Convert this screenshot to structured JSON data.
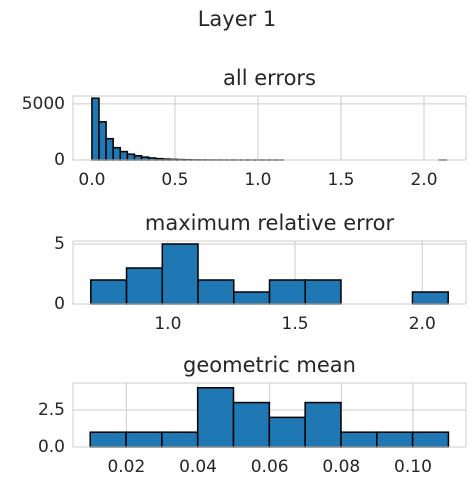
{
  "title": "Layer 1",
  "chart_data": [
    {
      "type": "histogram",
      "title": "all errors",
      "color": "#1f77b4",
      "edgecolor": "#000000",
      "grid": true,
      "bins": [
        0,
        0.0427,
        0.0854,
        0.1281,
        0.1708,
        0.2135,
        0.2562,
        0.2989,
        0.3416,
        0.3843,
        0.427,
        0.4697,
        0.5124,
        0.5551,
        0.5978,
        0.6405,
        0.6832,
        0.7259,
        0.7686,
        0.8113,
        0.854,
        0.8967,
        0.9394,
        0.9821,
        1.0248,
        1.0675,
        1.1102,
        1.1529,
        1.1956,
        1.2383,
        1.281,
        1.3237,
        1.3664,
        1.4091,
        1.4518,
        1.4945,
        1.5372,
        1.5799,
        1.6226,
        1.6653,
        1.708,
        1.7507,
        1.7934,
        1.8361,
        1.8788,
        1.9215,
        1.9642,
        2.0069,
        2.0496,
        2.0923,
        2.135
      ],
      "values": [
        5500,
        3400,
        1900,
        1100,
        750,
        520,
        380,
        260,
        180,
        120,
        80,
        55,
        35,
        25,
        15,
        10,
        7,
        5,
        4,
        3,
        2,
        2,
        1,
        1,
        1,
        1,
        1,
        0,
        0,
        0,
        0,
        0,
        0,
        0,
        0,
        0,
        0,
        0,
        0,
        0,
        0,
        0,
        0,
        0,
        0,
        0,
        0,
        0,
        0,
        1
      ],
      "xlim": [
        -0.114,
        2.253
      ],
      "ylim": [
        0,
        5700
      ],
      "xticks": [
        {
          "value": 0,
          "label": "0.0"
        },
        0.5,
        {
          "value": 1,
          "label": "1.0"
        },
        1.5,
        {
          "value": 2,
          "label": "2.0"
        }
      ],
      "yticks": [
        0,
        5000
      ]
    },
    {
      "type": "histogram",
      "title": "maximum relative error",
      "color": "#1f77b4",
      "edgecolor": "#000000",
      "grid": true,
      "bins": [
        0.697,
        0.8375,
        0.978,
        1.1185,
        1.259,
        1.3995,
        1.54,
        1.6805,
        1.821,
        1.9615,
        2.102
      ],
      "values": [
        2,
        3,
        5,
        2,
        1,
        2,
        2,
        0,
        0,
        1
      ],
      "xlim": [
        0.627,
        2.172
      ],
      "ylim": [
        0,
        5.25
      ],
      "xticks": [
        {
          "value": 1,
          "label": "1.0"
        },
        1.5,
        {
          "value": 2,
          "label": "2.0"
        }
      ],
      "yticks": [
        0,
        5
      ]
    },
    {
      "type": "histogram",
      "title": "geometric mean",
      "color": "#1f77b4",
      "edgecolor": "#000000",
      "grid": true,
      "bins": [
        0.0099,
        0.0199,
        0.0299,
        0.0399,
        0.0499,
        0.0599,
        0.0699,
        0.0799,
        0.0899,
        0.0999,
        0.1099
      ],
      "values": [
        1,
        1,
        1,
        4,
        3,
        2,
        3,
        1,
        1,
        1
      ],
      "xlim": [
        0.0051,
        0.1148
      ],
      "ylim": [
        0,
        4.32
      ],
      "xticks": [
        0.02,
        0.04,
        0.06,
        0.08,
        {
          "value": 0.1,
          "label": "0.10"
        }
      ],
      "yticks": [
        {
          "value": 0,
          "label": "0.0"
        },
        2.5
      ]
    }
  ]
}
